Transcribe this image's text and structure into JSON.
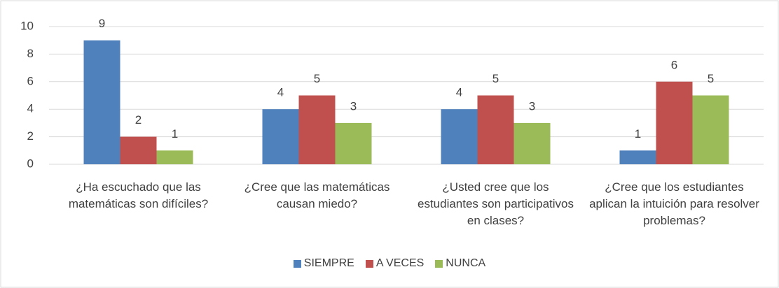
{
  "chart_data": {
    "type": "bar",
    "categories": [
      "¿Ha escuchado que las matemáticas son difíciles?",
      "¿Cree que las matemáticas causan miedo?",
      "¿Usted cree que los estudiantes son participativos en clases?",
      "¿Cree que los estudiantes aplican  la intuición para resolver problemas?"
    ],
    "series": [
      {
        "name": "SIEMPRE",
        "color": "#4f81bd",
        "values": [
          9,
          4,
          4,
          1
        ]
      },
      {
        "name": "A VECES",
        "color": "#c0504d",
        "values": [
          2,
          5,
          5,
          6
        ]
      },
      {
        "name": "NUNCA",
        "color": "#9bbb59",
        "values": [
          1,
          3,
          3,
          5
        ]
      }
    ],
    "ylim": [
      0,
      10
    ],
    "yticks": [
      0,
      2,
      4,
      6,
      8,
      10
    ],
    "grid": true,
    "legend": "bottom"
  }
}
